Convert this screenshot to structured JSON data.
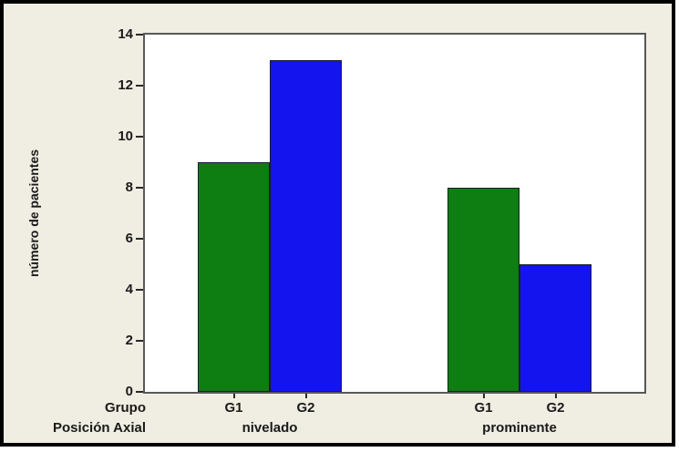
{
  "chart_data": {
    "type": "bar",
    "title": "",
    "ylabel": "número de pacientes",
    "ylim": [
      0,
      14
    ],
    "ytick_step": 2,
    "yticks": [
      0,
      2,
      4,
      6,
      8,
      10,
      12,
      14
    ],
    "categories": [
      "nivelado",
      "prominente"
    ],
    "series": [
      {
        "name": "G1",
        "values": [
          9,
          8
        ],
        "color": "#0E7D12"
      },
      {
        "name": "G2",
        "values": [
          13,
          5
        ],
        "color": "#1414EE"
      }
    ],
    "x_axis_rows": {
      "bar_row_label": "Grupo",
      "group_row_label": "Posición Axial"
    },
    "legend": "none",
    "grid": false,
    "colors": {
      "figure_background": "#F0EDE2",
      "plot_background": "#FFFFFF",
      "plot_border": "#58585A",
      "outer_frame": "#000000",
      "text": "#1A1A1A",
      "bar_g1": "#0E7D12",
      "bar_g2": "#1414EE"
    }
  }
}
